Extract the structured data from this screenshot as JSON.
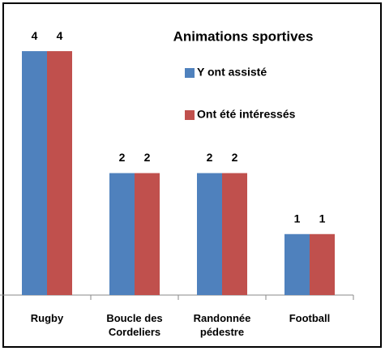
{
  "chart_data": {
    "type": "bar",
    "title": "Animations sportives",
    "categories": [
      "Rugby",
      "Boucle des Cordeliers",
      "Randonnée pédestre",
      "Football"
    ],
    "series": [
      {
        "name": "Y ont assisté",
        "color": "#4f81bd",
        "values": [
          4,
          2,
          2,
          1
        ]
      },
      {
        "name": "Ont été intéressés",
        "color": "#c0504d",
        "values": [
          4,
          2,
          2,
          1
        ]
      }
    ],
    "ylim": [
      0,
      4.4
    ]
  }
}
